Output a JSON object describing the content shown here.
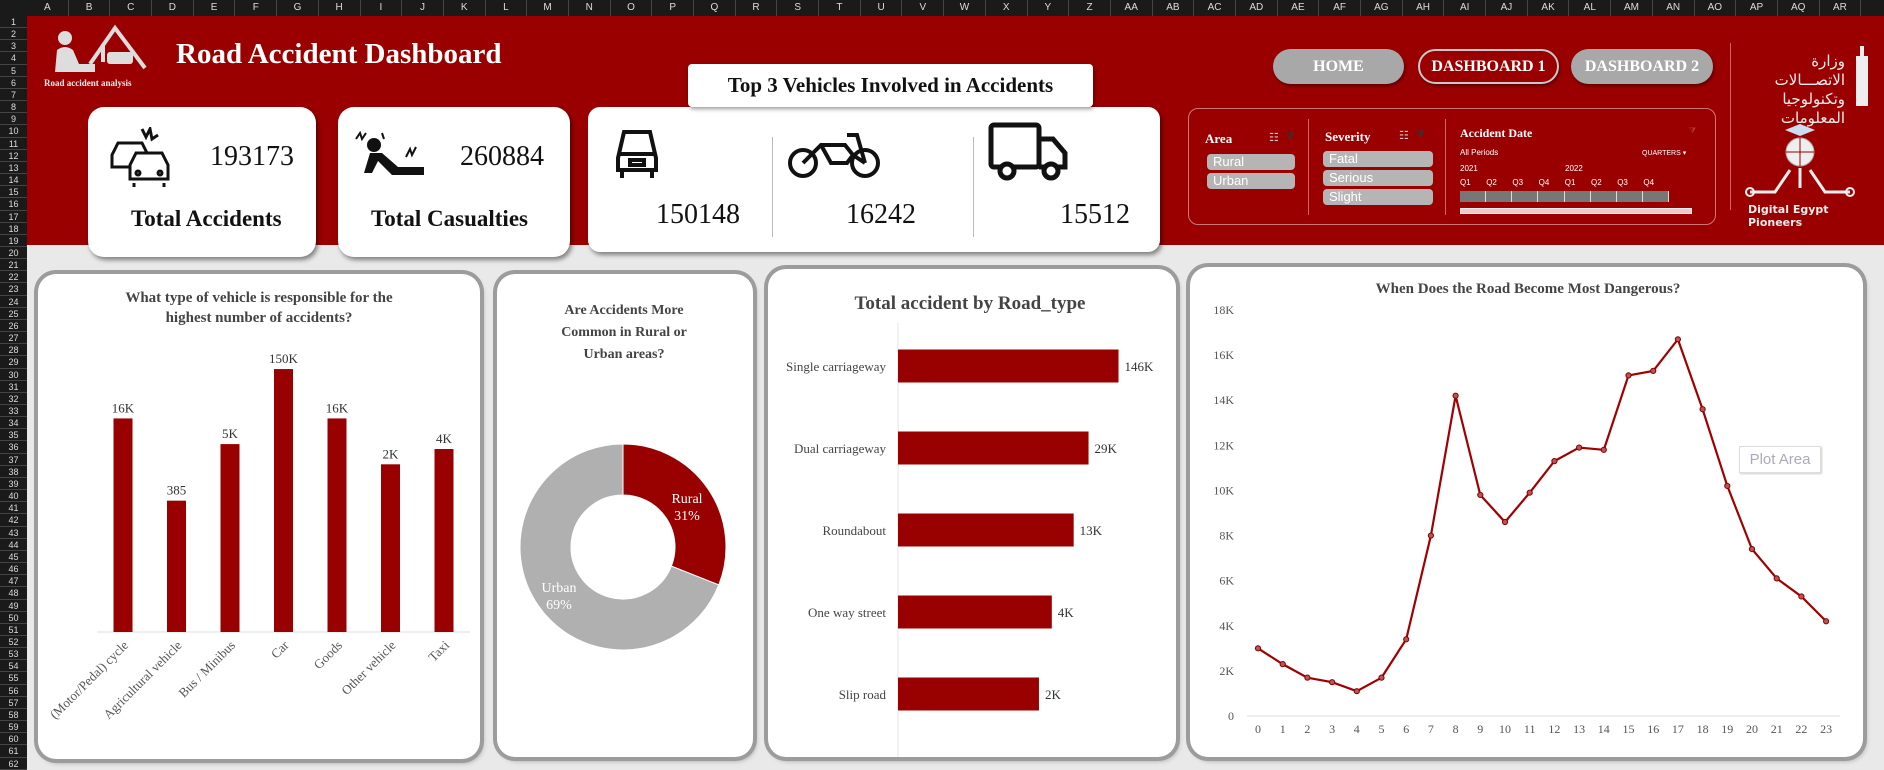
{
  "sheet": {
    "columns": [
      "A",
      "B",
      "C",
      "D",
      "E",
      "F",
      "G",
      "H",
      "I",
      "J",
      "K",
      "L",
      "M",
      "N",
      "O",
      "P",
      "Q",
      "R",
      "S",
      "T",
      "U",
      "V",
      "W",
      "X",
      "Y",
      "Z",
      "AA",
      "AB",
      "AC",
      "AD",
      "AE",
      "AF",
      "AG",
      "AH",
      "AI",
      "AJ",
      "AK",
      "AL",
      "AM",
      "AN",
      "AO",
      "AP",
      "AQ",
      "AR"
    ],
    "row_count": 62
  },
  "header": {
    "title": "Road Accident Dashboard",
    "logo_caption": "Road accident analysis",
    "ministry_text_line1": "وزارة الاتصـــالات",
    "ministry_text_line2": "وتكنولوجيا المعلومات",
    "pioneers_caption": "Digital Egypt Pioneers"
  },
  "nav": {
    "home": "HOME",
    "dashboard1": "DASHBOARD 1",
    "dashboard2": "DASHBOARD 2"
  },
  "kpis": {
    "total_accidents": {
      "value": "193173",
      "label": "Total Accidents"
    },
    "total_casualties": {
      "value": "260884",
      "label": "Total Casualties"
    }
  },
  "top_vehicles": {
    "title": "Top 3 Vehicles Involved in Accidents",
    "items": [
      {
        "icon": "car-icon",
        "value": "150148"
      },
      {
        "icon": "motorcycle-icon",
        "value": "16242"
      },
      {
        "icon": "truck-icon",
        "value": "15512"
      }
    ]
  },
  "slicers": {
    "area": {
      "title": "Area",
      "items": [
        "Rural",
        "Urban"
      ]
    },
    "severity": {
      "title": "Severity",
      "items": [
        "Fatal",
        "Serious",
        "Slight"
      ]
    },
    "date": {
      "title": "Accident Date",
      "periods": "All Periods",
      "level": "QUARTERS",
      "years": [
        "2021",
        "2022"
      ],
      "quarters": [
        "Q1",
        "Q2",
        "Q3",
        "Q4",
        "Q1",
        "Q2",
        "Q3",
        "Q4"
      ]
    }
  },
  "colors": {
    "brand_red": "#9a0000",
    "bar": "#990000",
    "urban_gray": "#b0b0b0",
    "line": "#a00000"
  },
  "chart_data": [
    {
      "type": "bar",
      "title": "What type of vehicle is responsible for the highest number of accidents?",
      "title_lines": [
        "What type of vehicle is responsible for the",
        "highest number of accidents?"
      ],
      "scale": "log",
      "categories": [
        "(Motor/Pedal) cycle",
        "Agricultural vehicle",
        "Bus / Minibus",
        "Car",
        "Goods",
        "Other vehicle",
        "Taxi"
      ],
      "values": [
        16000,
        385,
        5000,
        150000,
        16000,
        2000,
        4000
      ],
      "labels": [
        "16K",
        "385",
        "5K",
        "150K",
        "16K",
        "2K",
        "4K"
      ]
    },
    {
      "type": "pie",
      "variant": "donut",
      "title_lines": [
        "Are Accidents More",
        "Common in Rural or",
        "Urban areas?"
      ],
      "categories": [
        "Rural",
        "Urban"
      ],
      "values": [
        31,
        69
      ],
      "labels": [
        "31%",
        "69%"
      ]
    },
    {
      "type": "bar",
      "orientation": "horizontal",
      "title": "Total accident by Road_type",
      "scale": "log",
      "categories": [
        "Single carriageway",
        "Dual carriageway",
        "Roundabout",
        "One way street",
        "Slip road"
      ],
      "values": [
        146000,
        29000,
        13000,
        4000,
        2000
      ],
      "labels": [
        "146K",
        "29K",
        "13K",
        "4K",
        "2K"
      ]
    },
    {
      "type": "line",
      "title": "When Does the Road Become Most Dangerous?",
      "x": [
        0,
        1,
        2,
        3,
        4,
        5,
        6,
        7,
        8,
        9,
        10,
        11,
        12,
        13,
        14,
        15,
        16,
        17,
        18,
        19,
        20,
        21,
        22,
        23
      ],
      "values": [
        3000,
        2300,
        1700,
        1500,
        1100,
        1700,
        3400,
        8000,
        14200,
        9800,
        8600,
        9900,
        11300,
        11900,
        11800,
        15100,
        15300,
        16700,
        13600,
        10200,
        7400,
        6100,
        5300,
        4200
      ],
      "ylim": [
        0,
        18000
      ],
      "yticks": [
        "0",
        "2K",
        "4K",
        "6K",
        "8K",
        "10K",
        "12K",
        "14K",
        "16K",
        "18K"
      ],
      "tooltip": "Plot Area"
    }
  ]
}
